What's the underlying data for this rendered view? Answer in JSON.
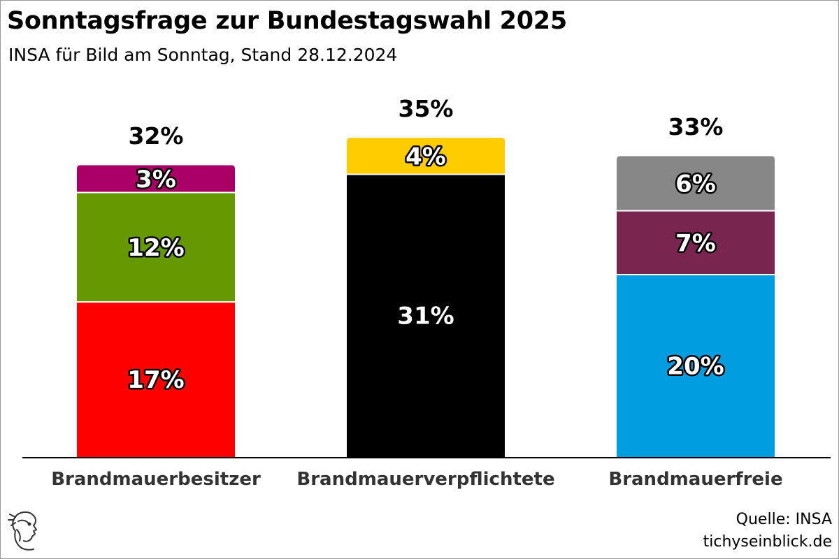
{
  "header": {
    "title": "Sonntagsfrage zur Bundestagswahl 2025",
    "subtitle": "INSA für Bild am Sonntag, Stand 28.12.2024"
  },
  "footer": {
    "source": "Quelle: INSA",
    "site": "tichyseinblick.de"
  },
  "colors": {
    "red": "#ff0000",
    "green": "#669900",
    "magenta": "#aa0066",
    "black": "#000000",
    "yellow": "#ffcc00",
    "blue": "#009ee0",
    "wine": "#78264f",
    "grey": "#878787"
  },
  "chart_data": {
    "type": "bar",
    "stacked": true,
    "categories": [
      "Brandmauerbesitzer",
      "Brandmauerverpflichtete",
      "Brandmauerfreie"
    ],
    "totals": [
      "32%",
      "35%",
      "33%"
    ],
    "stacks": [
      [
        {
          "value": 17,
          "label": "17%",
          "color": "#ff0000"
        },
        {
          "value": 12,
          "label": "12%",
          "color": "#669900"
        },
        {
          "value": 3,
          "label": "3%",
          "color": "#aa0066"
        }
      ],
      [
        {
          "value": 31,
          "label": "31%",
          "color": "#000000"
        },
        {
          "value": 4,
          "label": "4%",
          "color": "#ffcc00"
        }
      ],
      [
        {
          "value": 20,
          "label": "20%",
          "color": "#009ee0"
        },
        {
          "value": 7,
          "label": "7%",
          "color": "#78264f"
        },
        {
          "value": 6,
          "label": "6%",
          "color": "#878787"
        }
      ]
    ],
    "ylim": [
      0,
      35
    ],
    "grid": false
  }
}
